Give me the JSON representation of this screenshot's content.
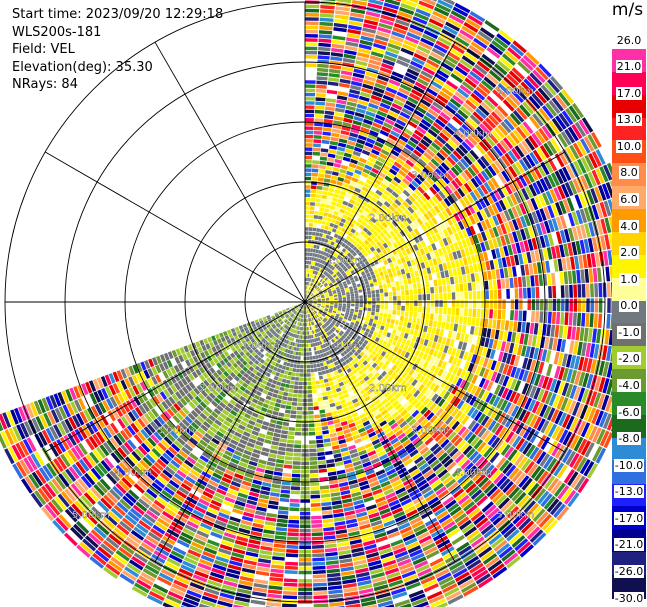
{
  "info": {
    "start_time": "Start time: 2023/09/20 12:29:18",
    "instrument": "WLS200s-181",
    "field": "Field: VEL",
    "elevation": "Elevation(deg): 35.30",
    "nrays": "NRays: 84"
  },
  "chart_data": {
    "type": "heatmap",
    "projection": "polar PPI",
    "field": "VEL",
    "units": "m/s",
    "elevation_deg": 35.3,
    "nrays": 84,
    "sector_deg": [
      0,
      250
    ],
    "range_rings_km": [
      1.0,
      2.0,
      3.0,
      4.0,
      5.0
    ],
    "range_ring_labels": [
      "1.00km",
      "2.00km",
      "3.00km",
      "4.00km",
      "5.00km"
    ],
    "max_range_km": 5.6,
    "spoke_angles_deg": [
      0,
      30,
      60,
      90,
      120,
      150,
      180,
      210,
      240,
      270,
      300,
      330
    ],
    "colorbar": {
      "title": "m/s",
      "tick_labels": [
        "26.0",
        "21.0",
        "17.0",
        "13.0",
        "10.0",
        "8.0",
        "6.0",
        "4.0",
        "2.0",
        "1.0",
        "0.0",
        "-1.0",
        "-2.0",
        "-4.0",
        "-6.0",
        "-8.0",
        "-10.0",
        "-13.0",
        "-17.0",
        "-21.0",
        "-26.0",
        "-30.0"
      ],
      "colors": [
        "#ffffff",
        "#ff2fa8",
        "#ff0055",
        "#e80000",
        "#ff2222",
        "#ff4f17",
        "#ff8c4a",
        "#ffaa6a",
        "#ff9a00",
        "#ffd400",
        "#fff500",
        "#ffff99",
        "#707880",
        "#707070",
        "#a0cc30",
        "#6b9a30",
        "#2a8a2a",
        "#1c6a1c",
        "#2e8bd6",
        "#2f6fe0",
        "#2020ff",
        "#0000cc",
        "#000090",
        "#202080",
        "#101050"
      ]
    }
  }
}
